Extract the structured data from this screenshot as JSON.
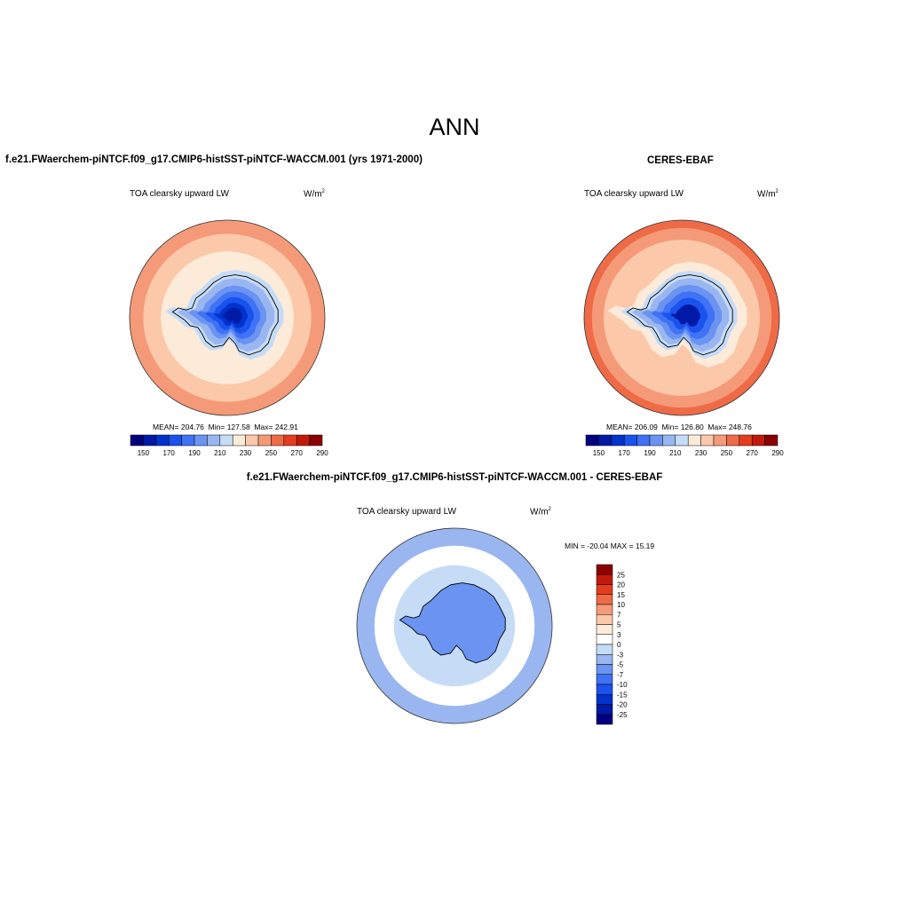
{
  "figure": {
    "title": "ANN"
  },
  "chart_data": [
    {
      "type": "heatmap",
      "panel": "test",
      "title": "f.e21.FWaerchem-piNTCF.f09_g17.CMIP6-histSST-piNTCF-WACCM.001 (yrs 1971-2000)",
      "variable_label": "TOA clearsky upward LW",
      "units": "W/m",
      "units_exponent": "2",
      "projection": "south-polar-stereographic",
      "stats": {
        "mean_label": "MEAN=",
        "mean": "204.76",
        "min_label": "Min=",
        "min": "127.58",
        "max_label": "Max=",
        "max": "242.91"
      },
      "colorbar": {
        "orientation": "horizontal",
        "levels": [
          140,
          150,
          160,
          170,
          180,
          190,
          200,
          210,
          220,
          230,
          240,
          250,
          260,
          270,
          280,
          290,
          300
        ],
        "tick_labels": [
          "150",
          "170",
          "190",
          "210",
          "230",
          "250",
          "270",
          "290"
        ],
        "colors": [
          "#00007f",
          "#001aa5",
          "#0033cc",
          "#1a52ee",
          "#3f72f5",
          "#6a93f2",
          "#99b6f0",
          "#c6dbf6",
          "#fdebd9",
          "#fcc8aa",
          "#f59a78",
          "#ef6a47",
          "#e43d1d",
          "#c21a0a",
          "#8b0000"
        ]
      },
      "zones": [
        {
          "radius_fraction": 1.0,
          "value": 245
        },
        {
          "radius_fraction": 0.86,
          "value": 235
        },
        {
          "radius_fraction": 0.68,
          "value": 225
        },
        {
          "radius_fraction": 0.56,
          "value": 215
        },
        {
          "radius_fraction": 0.46,
          "value": 205
        },
        {
          "radius_fraction": 0.37,
          "value": 195
        },
        {
          "radius_fraction": 0.3,
          "value": 185
        },
        {
          "radius_fraction": 0.23,
          "value": 175
        },
        {
          "radius_fraction": 0.16,
          "value": 165
        },
        {
          "radius_fraction": 0.1,
          "value": 155
        }
      ]
    },
    {
      "type": "heatmap",
      "panel": "reference",
      "title": "CERES-EBAF",
      "variable_label": "TOA clearsky upward LW",
      "units": "W/m",
      "units_exponent": "2",
      "projection": "south-polar-stereographic",
      "stats": {
        "mean_label": "MEAN=",
        "mean": "206.09",
        "min_label": "Min=",
        "min": "126.80",
        "max_label": "Max=",
        "max": "248.76"
      },
      "colorbar": {
        "orientation": "horizontal",
        "levels": [
          140,
          150,
          160,
          170,
          180,
          190,
          200,
          210,
          220,
          230,
          240,
          250,
          260,
          270,
          280,
          290,
          300
        ],
        "tick_labels": [
          "150",
          "170",
          "190",
          "210",
          "230",
          "250",
          "270",
          "290"
        ],
        "colors": [
          "#00007f",
          "#001aa5",
          "#0033cc",
          "#1a52ee",
          "#3f72f5",
          "#6a93f2",
          "#99b6f0",
          "#c6dbf6",
          "#fdebd9",
          "#fcc8aa",
          "#f59a78",
          "#ef6a47",
          "#e43d1d",
          "#c21a0a",
          "#8b0000"
        ]
      },
      "zones": [
        {
          "radius_fraction": 1.0,
          "value": 255
        },
        {
          "radius_fraction": 0.92,
          "value": 245
        },
        {
          "radius_fraction": 0.8,
          "value": 235
        },
        {
          "radius_fraction": 0.66,
          "value": 225
        },
        {
          "radius_fraction": 0.55,
          "value": 215
        },
        {
          "radius_fraction": 0.46,
          "value": 205
        },
        {
          "radius_fraction": 0.38,
          "value": 195
        },
        {
          "radius_fraction": 0.3,
          "value": 185
        },
        {
          "radius_fraction": 0.22,
          "value": 170
        },
        {
          "radius_fraction": 0.14,
          "value": 150
        }
      ]
    },
    {
      "type": "heatmap",
      "panel": "difference",
      "title": "f.e21.FWaerchem-piNTCF.f09_g17.CMIP6-histSST-piNTCF-WACCM.001 - CERES-EBAF",
      "variable_label": "TOA clearsky upward LW",
      "units": "W/m",
      "units_exponent": "2",
      "projection": "south-polar-stereographic",
      "stats": {
        "text": "MIN = -20.04  MAX =  15.19"
      },
      "colorbar": {
        "orientation": "vertical",
        "boundaries": [
          "25",
          "20",
          "15",
          "10",
          "7",
          "5",
          "3",
          "0",
          "-3",
          "-5",
          "-7",
          "-10",
          "-15",
          "-20",
          "-25"
        ],
        "colors": [
          "#8b0000",
          "#c21a0a",
          "#e43d1d",
          "#ef6a47",
          "#f59a78",
          "#fcc8aa",
          "#fdebd9",
          "#ffffff",
          "#c6dbf6",
          "#99b6f0",
          "#6a93f2",
          "#3f72f5",
          "#1a52ee",
          "#0033cc",
          "#001aa5",
          "#00007f"
        ]
      },
      "zones": [
        {
          "radius_fraction": 1.0,
          "value": -3
        },
        {
          "radius_fraction": 0.82,
          "value": 2
        },
        {
          "radius_fraction": 0.62,
          "value": -2
        },
        {
          "radius_fraction": 0.44,
          "value": -6
        }
      ]
    }
  ]
}
